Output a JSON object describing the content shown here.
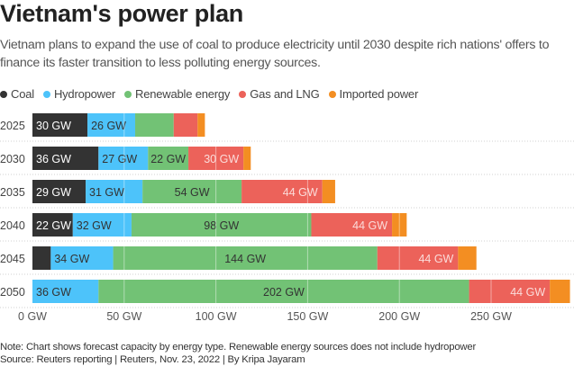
{
  "chart_data": {
    "type": "bar",
    "orientation": "horizontal",
    "stacked": true,
    "title": "Vietnam's power plan",
    "subtitle": "Vietnam plans to expand the use of coal to produce electricity until 2030 despite rich nations' offers to finance its faster transition to less polluting energy sources.",
    "categories": [
      "2025",
      "2030",
      "2035",
      "2040",
      "2045",
      "2050"
    ],
    "series": [
      {
        "name": "Coal",
        "color": "#333333",
        "values": [
          30,
          36,
          29,
          22,
          10,
          0
        ],
        "labels": [
          "30 GW",
          "36 GW",
          "29 GW",
          "22 GW",
          "",
          ""
        ],
        "label_color": "#ffffff"
      },
      {
        "name": "Hydropower",
        "color": "#4dc3fa",
        "values": [
          26,
          27,
          31,
          32,
          34,
          36
        ],
        "labels": [
          "26 GW",
          "27 GW",
          "31 GW",
          "32 GW",
          "34 GW",
          "36 GW"
        ],
        "label_color": "#333333"
      },
      {
        "name": "Renewable energy",
        "color": "#72c275",
        "values": [
          21,
          22,
          54,
          98,
          144,
          202
        ],
        "labels": [
          "",
          "22 GW",
          "54 GW",
          "98 GW",
          "144 GW",
          "202 GW"
        ],
        "label_color": "#333333"
      },
      {
        "name": "Gas and LNG",
        "color": "#ec625a",
        "values": [
          13,
          30,
          44,
          44,
          44,
          44
        ],
        "labels": [
          "",
          "30 GW",
          "44 GW",
          "44 GW",
          "44 GW",
          "44 GW"
        ],
        "label_color": "#fbdcda"
      },
      {
        "name": "Imported power",
        "color": "#f38e22",
        "values": [
          4,
          4,
          7,
          8,
          10,
          11
        ],
        "labels": [
          "",
          "",
          "",
          "",
          "",
          ""
        ],
        "label_color": "#ffffff"
      }
    ],
    "xlabel": "",
    "ylabel": "",
    "xlim": [
      0,
      295
    ],
    "xticks": [
      0,
      50,
      100,
      150,
      200,
      250
    ],
    "xtick_labels": [
      "0 GW",
      "50 GW",
      "100 GW",
      "150 GW",
      "200 GW",
      "250 GW"
    ],
    "grid": true,
    "legend_position": "top-left"
  },
  "header": {
    "title": "Vietnam's power plan",
    "subtitle": "Vietnam plans to expand the use of coal to produce electricity until 2030 despite rich nations' offers to finance its faster transition to less polluting energy sources."
  },
  "legend": [
    {
      "label": "Coal",
      "color": "#333333"
    },
    {
      "label": "Hydropower",
      "color": "#4dc3fa"
    },
    {
      "label": "Renewable energy",
      "color": "#72c275"
    },
    {
      "label": "Gas and LNG",
      "color": "#ec625a"
    },
    {
      "label": "Imported power",
      "color": "#f38e22"
    }
  ],
  "footer": {
    "note": "Note: Chart shows forecast capacity by energy type. Renewable energy sources does not include hydropower",
    "source": "Source: Reuters reporting | Reuters, Nov. 23, 2022 | By Kripa Jayaram"
  }
}
